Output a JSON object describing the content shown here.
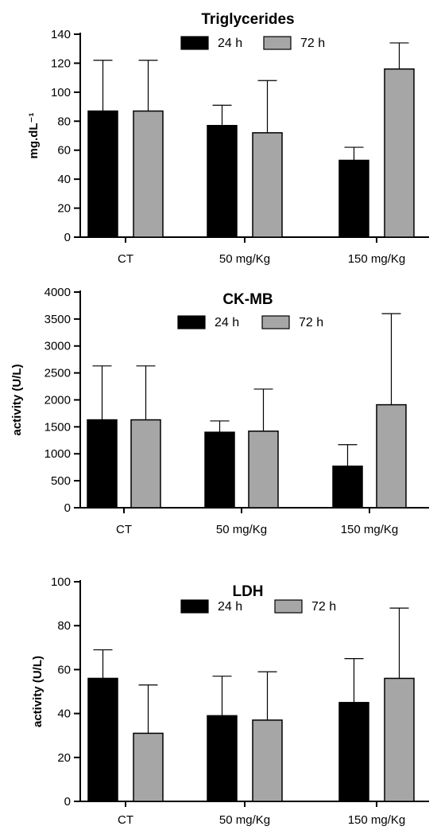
{
  "chart_data": [
    {
      "type": "bar",
      "title": "Triglycerides",
      "ylabel": "mg.dL⁻¹",
      "xlabel": "",
      "categories": [
        "CT",
        "50 mg/Kg",
        "150 mg/Kg"
      ],
      "ylim": [
        0,
        140
      ],
      "yticks": [
        0,
        20,
        40,
        60,
        80,
        100,
        120,
        140
      ],
      "legend_position": "top",
      "series": [
        {
          "name": "24 h",
          "color": "#000000",
          "values": [
            87,
            77,
            53
          ],
          "errors": [
            35,
            14,
            9
          ]
        },
        {
          "name": "72 h",
          "color": "#a6a6a6",
          "values": [
            87,
            72,
            116
          ],
          "errors": [
            35,
            36,
            18
          ]
        }
      ]
    },
    {
      "type": "bar",
      "title": "CK-MB",
      "ylabel": "activity (U/L)",
      "xlabel": "",
      "categories": [
        "CT",
        "50 mg/Kg",
        "150 mg/Kg"
      ],
      "ylim": [
        0,
        4000
      ],
      "yticks": [
        0,
        500,
        1000,
        1500,
        2000,
        2500,
        3000,
        3500,
        4000
      ],
      "legend_position": "top",
      "series": [
        {
          "name": "24 h",
          "color": "#000000",
          "values": [
            1630,
            1400,
            770
          ],
          "errors": [
            1000,
            210,
            400
          ]
        },
        {
          "name": "72 h",
          "color": "#a6a6a6",
          "values": [
            1630,
            1420,
            1910
          ],
          "errors": [
            1000,
            780,
            1690
          ]
        }
      ]
    },
    {
      "type": "bar",
      "title": "LDH",
      "ylabel": "activity (U/L)",
      "xlabel": "",
      "categories": [
        "CT",
        "50 mg/Kg",
        "150 mg/Kg"
      ],
      "ylim": [
        0,
        100
      ],
      "yticks": [
        0,
        20,
        40,
        60,
        80,
        100
      ],
      "legend_position": "top",
      "series": [
        {
          "name": "24 h",
          "color": "#000000",
          "values": [
            56,
            39,
            45
          ],
          "errors": [
            13,
            18,
            20
          ]
        },
        {
          "name": "72 h",
          "color": "#a6a6a6",
          "values": [
            31,
            37,
            56
          ],
          "errors": [
            22,
            22,
            32
          ]
        }
      ]
    }
  ]
}
